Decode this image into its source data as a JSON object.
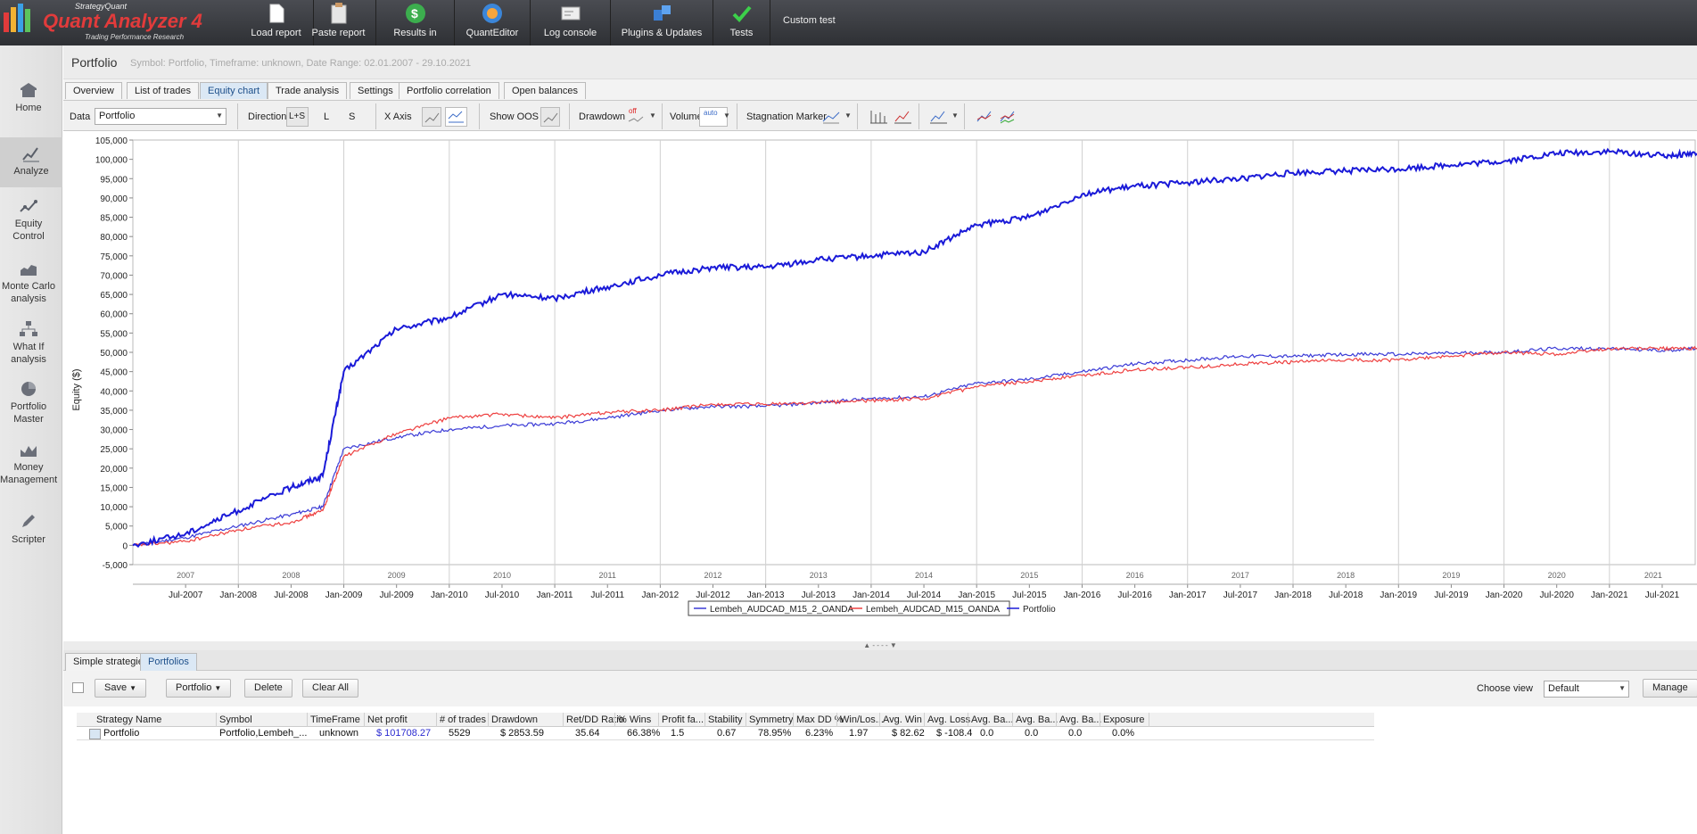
{
  "app": {
    "brand_small": "StrategyQuant",
    "brand_main": "Quant Analyzer 4",
    "brand_sub": "Trading Performance Research"
  },
  "topbar": {
    "buttons": [
      {
        "label": "Load report",
        "icon": "document-icon"
      },
      {
        "label": "Paste report",
        "icon": "clipboard-icon"
      },
      {
        "label": "Results in",
        "icon": "dollar-icon"
      },
      {
        "label": "QuantEditor",
        "icon": "globe-icon"
      },
      {
        "label": "Log console",
        "icon": "console-icon"
      },
      {
        "label": "Plugins & Updates",
        "icon": "puzzle-icon"
      },
      {
        "label": "Tests",
        "icon": "checkmark-icon"
      }
    ],
    "custom_test": "Custom test"
  },
  "sidebar": {
    "items": [
      {
        "label": "Home",
        "icon": "home-icon"
      },
      {
        "label": "Analyze",
        "icon": "analyze-chart-icon",
        "active": true
      },
      {
        "label": "Equity Control",
        "icon": "equity-control-icon"
      },
      {
        "label": "Monte Carlo analysis",
        "icon": "monte-carlo-icon"
      },
      {
        "label": "What If analysis",
        "icon": "what-if-icon"
      },
      {
        "label": "Portfolio Master",
        "icon": "pie-chart-icon"
      },
      {
        "label": "Money Management",
        "icon": "money-icon"
      },
      {
        "label": "Scripter",
        "icon": "pencil-icon"
      }
    ]
  },
  "page": {
    "title": "Portfolio",
    "subtitle": "Symbol: Portfolio, Timeframe: unknown, Date Range: 02.01.2007 - 29.10.2021"
  },
  "tabs": [
    "Overview",
    "List of trades",
    "Equity chart",
    "Trade analysis",
    "Settings",
    "Portfolio correlation",
    "Open balances"
  ],
  "active_tab": "Equity chart",
  "toolbar": {
    "data_label": "Data",
    "data_value": "Portfolio",
    "direction_label": "Direction",
    "dir_both": "L+S",
    "dir_long": "L",
    "dir_short": "S",
    "xaxis_label": "X Axis",
    "show_oos_label": "Show OOS",
    "drawdown_label": "Drawdown",
    "drawdown_state": "off",
    "volume_label": "Volume",
    "volume_state": "auto",
    "stagnation_label": "Stagnation Marker"
  },
  "chart_data": {
    "type": "line",
    "ylabel": "Equity ($)",
    "ylim": [
      -5000,
      105000
    ],
    "yticks": [
      "105,000",
      "100,000",
      "95,000",
      "90,000",
      "85,000",
      "80,000",
      "75,000",
      "70,000",
      "65,000",
      "60,000",
      "55,000",
      "50,000",
      "45,000",
      "40,000",
      "35,000",
      "30,000",
      "25,000",
      "20,000",
      "15,000",
      "10,000",
      "5,000",
      "0",
      "-5,000"
    ],
    "year_labels": [
      "2007",
      "2008",
      "2009",
      "2010",
      "2011",
      "2012",
      "2013",
      "2014",
      "2015",
      "2016",
      "2017",
      "2018",
      "2019",
      "2020",
      "2021"
    ],
    "month_labels": [
      "Jul-2007",
      "Jan-2008",
      "Jul-2008",
      "Jan-2009",
      "Jul-2009",
      "Jan-2010",
      "Jul-2010",
      "Jan-2011",
      "Jul-2011",
      "Jan-2012",
      "Jul-2012",
      "Jan-2013",
      "Jul-2013",
      "Jan-2014",
      "Jul-2014",
      "Jan-2015",
      "Jul-2015",
      "Jan-2016",
      "Jul-2016",
      "Jan-2017",
      "Jul-2017",
      "Jan-2018",
      "Jul-2018",
      "Jan-2019",
      "Jul-2019",
      "Jan-2020",
      "Jul-2020",
      "Jan-2021",
      "Jul-2021"
    ],
    "x": [
      2007.0,
      2007.5,
      2008.0,
      2008.5,
      2008.8,
      2009.0,
      2009.5,
      2010.0,
      2010.5,
      2011.0,
      2011.5,
      2012.0,
      2012.5,
      2013.0,
      2013.5,
      2014.0,
      2014.5,
      2015.0,
      2015.5,
      2016.0,
      2016.5,
      2017.0,
      2017.5,
      2018.0,
      2018.5,
      2019.0,
      2019.5,
      2020.0,
      2020.5,
      2021.0,
      2021.5,
      2021.83
    ],
    "series": [
      {
        "name": "Lembeh_AUDCAD_M15_2_OANDA",
        "color": "#3b3bd6",
        "values": [
          0,
          2000,
          5000,
          8000,
          10000,
          25000,
          28000,
          30000,
          31000,
          31500,
          33000,
          35000,
          36000,
          36000,
          37000,
          38000,
          38500,
          42000,
          43000,
          45000,
          47000,
          48000,
          49000,
          49000,
          49500,
          49500,
          49800,
          50000,
          51000,
          51000,
          50500,
          51000
        ]
      },
      {
        "name": "Lembeh_AUDCAD_M15_OANDA",
        "color": "#ee4040",
        "values": [
          0,
          1000,
          4000,
          6000,
          9000,
          23000,
          29000,
          33000,
          34000,
          33000,
          34500,
          35000,
          36500,
          36500,
          37000,
          37500,
          38000,
          41000,
          42500,
          44000,
          45500,
          46000,
          47000,
          47500,
          48000,
          48000,
          49000,
          50000,
          49500,
          51000,
          51000,
          51000
        ]
      },
      {
        "name": "Portfolio",
        "color": "#1a1ad8",
        "values": [
          0,
          3000,
          9000,
          15000,
          18000,
          45000,
          56000,
          59000,
          65000,
          64000,
          67000,
          70000,
          72000,
          72000,
          74000,
          75000,
          76000,
          83000,
          85000,
          91000,
          93000,
          94000,
          95000,
          96500,
          97000,
          97500,
          98500,
          99500,
          101500,
          102000,
          101000,
          101500
        ]
      }
    ]
  },
  "bottom_tabs": [
    "Simple strategies",
    "Portfolios"
  ],
  "active_bottom_tab": "Portfolios",
  "actions": {
    "save": "Save",
    "portfolio": "Portfolio",
    "delete": "Delete",
    "clear_all": "Clear All",
    "choose_view_label": "Choose view",
    "view_value": "Default",
    "manage": "Manage"
  },
  "table": {
    "columns": [
      "Strategy Name",
      "Symbol",
      "TimeFrame",
      "Net profit",
      "# of trades",
      "Drawdown",
      "Ret/DD Ratio",
      "% Wins",
      "Profit fa...",
      "Stability",
      "Symmetry",
      "Max DD %",
      "Win/Los...",
      "Avg. Win",
      "Avg. Loss",
      "Avg. Ba...",
      "Avg. Ba...",
      "Avg. Ba...",
      "Exposure"
    ],
    "rows": [
      [
        "Portfolio",
        "Portfolio,Lembeh_...",
        "unknown",
        "$ 101708.27",
        "5529",
        "$ 2853.59",
        "35.64",
        "66.38%",
        "1.5",
        "0.67",
        "78.95%",
        "6.23%",
        "1.97",
        "$ 82.62",
        "$ -108.4",
        "0.0",
        "0.0",
        "0.0",
        "0.0%"
      ]
    ]
  }
}
